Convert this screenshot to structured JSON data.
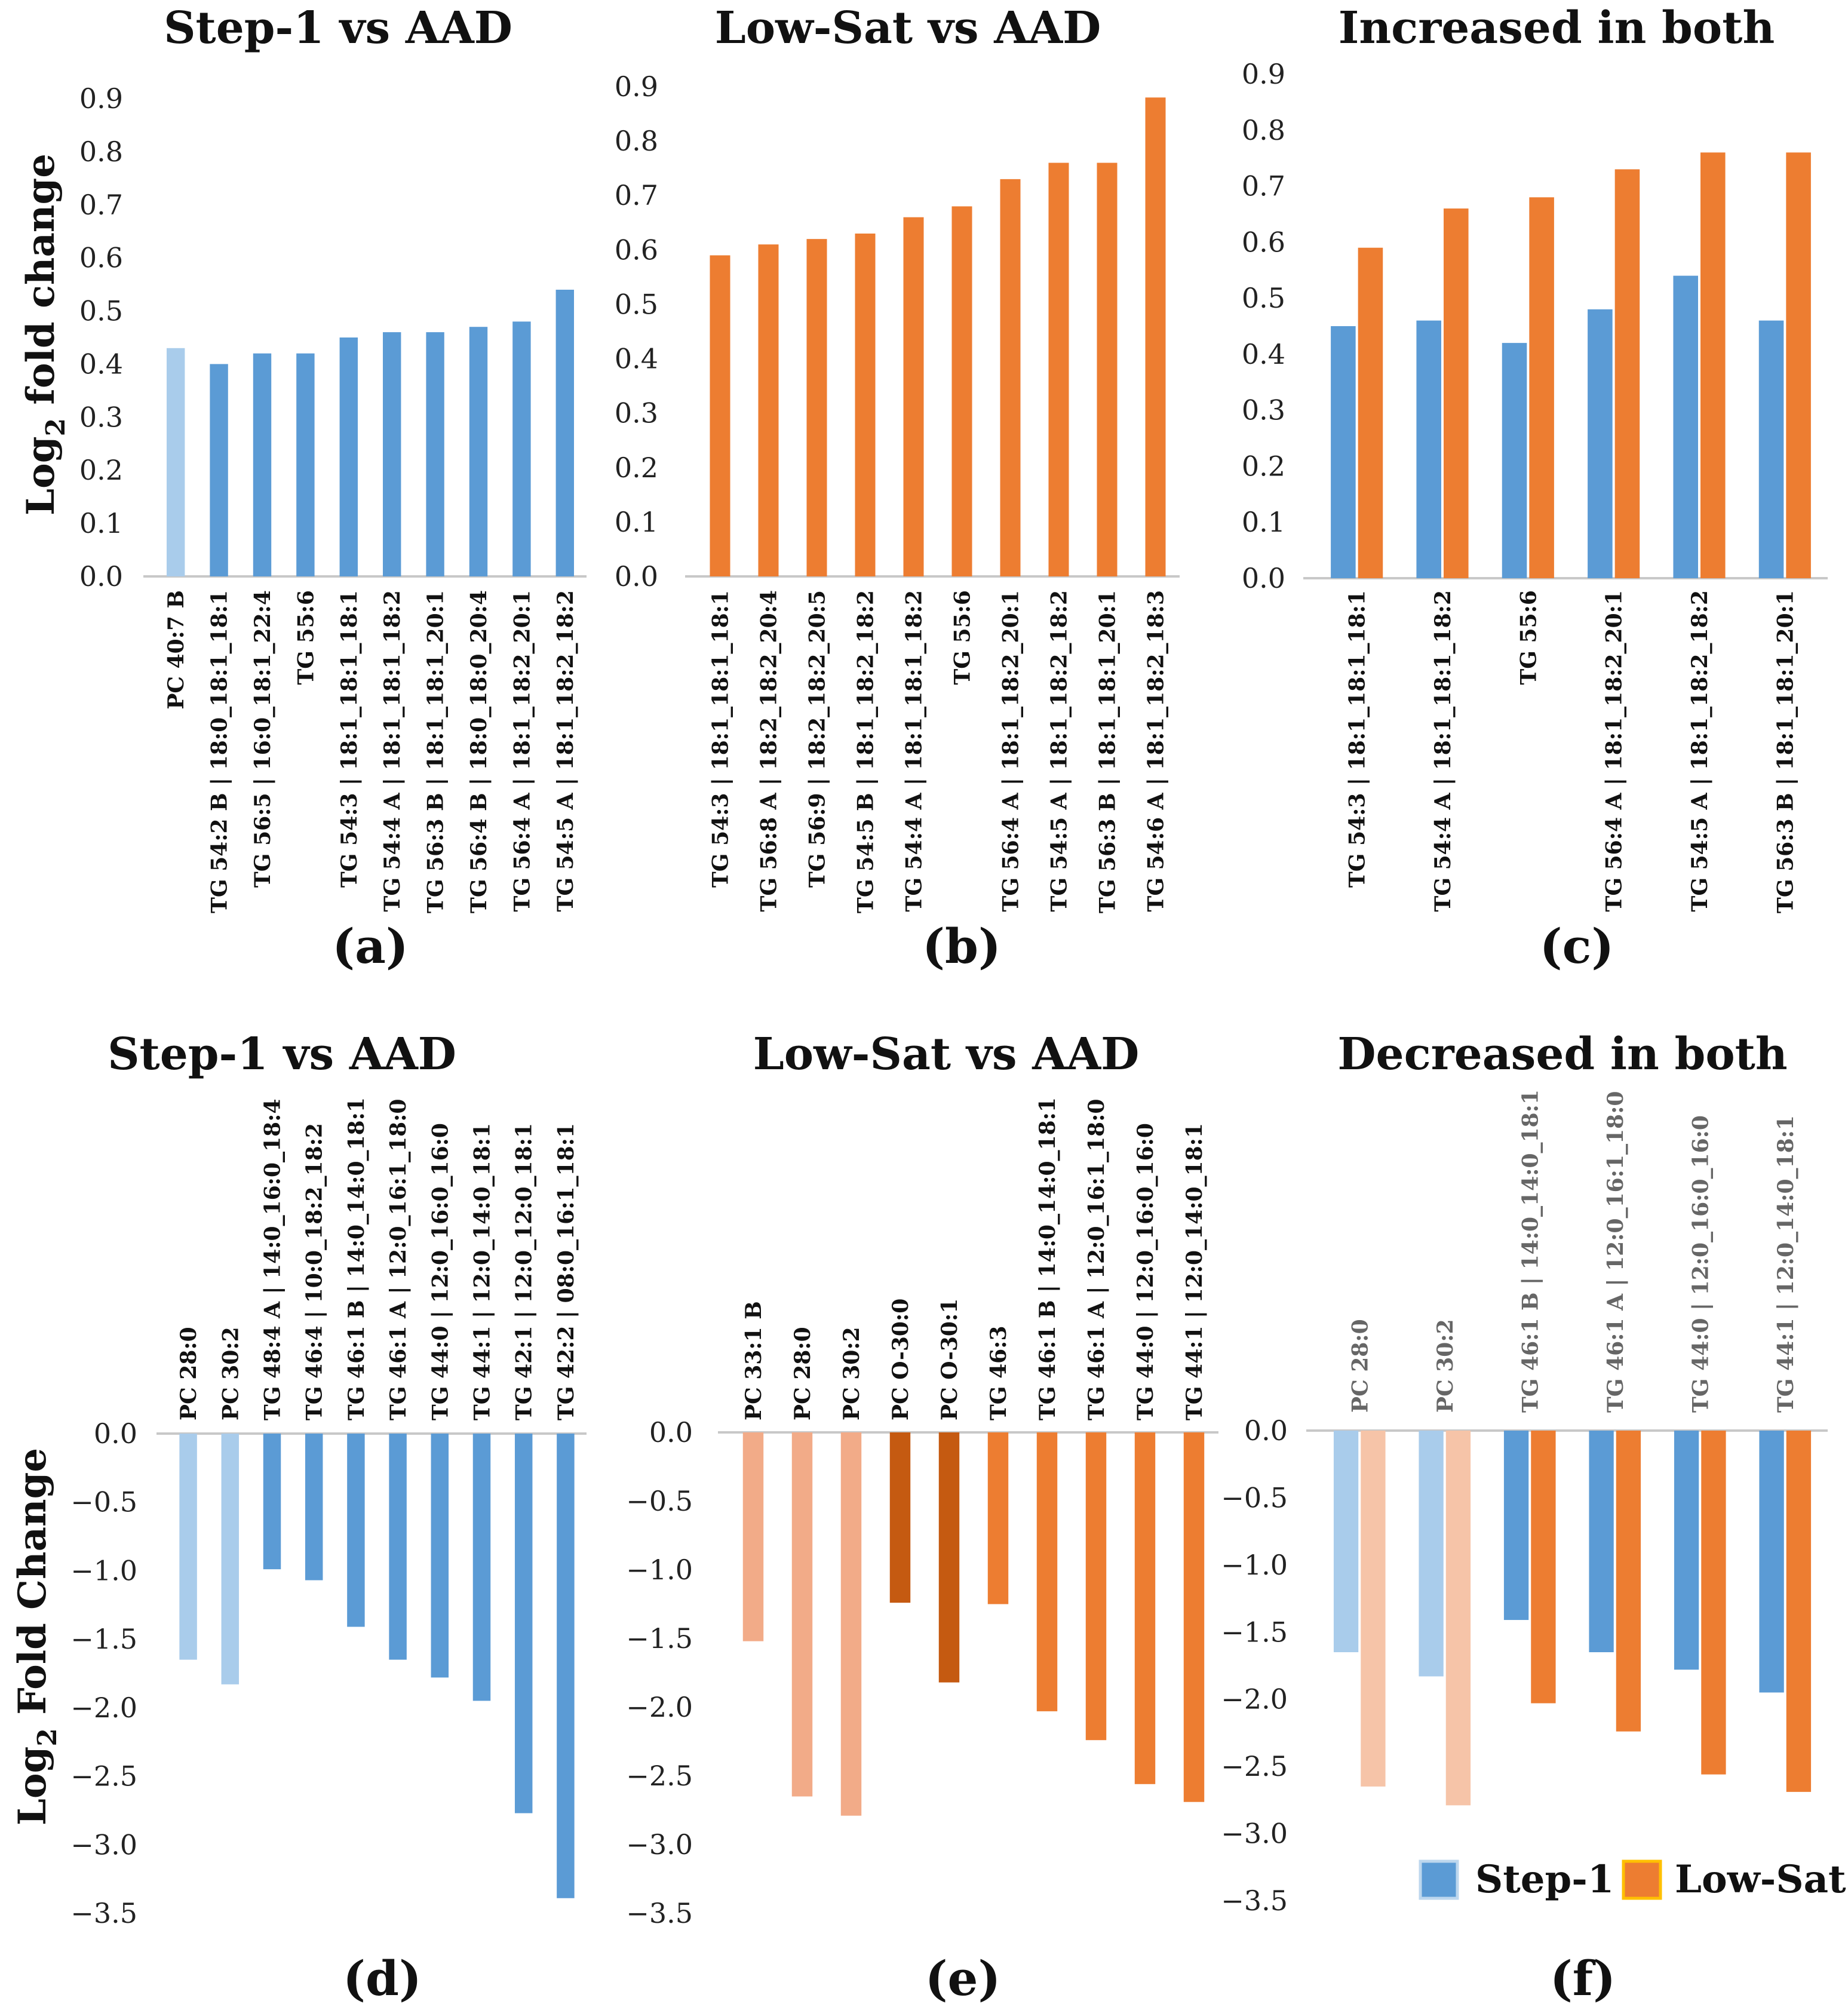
{
  "colors": {
    "step1": "#5b9bd5",
    "step1_light": "#a9cceb",
    "lowsat": "#ed7d31",
    "lowsat_light": "#f2ab88",
    "lowsat_lighter": "#f6c4a8",
    "lowsat_dark": "#c55a11",
    "axis": "#c8c8c8",
    "legend_lowsat_border": "#ffc000"
  },
  "shared_axis_labels": {
    "top_ylabel_main": "Log",
    "top_ylabel_sub": "2",
    "top_ylabel_rest": " fold change",
    "bottom_ylabel_main": "Log",
    "bottom_ylabel_sub": "2",
    "bottom_ylabel_rest": " Fold Change"
  },
  "legend": {
    "step1": "Step-1",
    "lowsat": "Low-Sat"
  },
  "chart_data": [
    {
      "id": "a",
      "panel_label": "(a)",
      "type": "bar",
      "title": "Step-1 vs AAD",
      "ylim": [
        0,
        0.9
      ],
      "yticks": [
        "0.0",
        "0.1",
        "0.2",
        "0.3",
        "0.4",
        "0.5",
        "0.6",
        "0.7",
        "0.8",
        "0.9"
      ],
      "categories": [
        "PC 40:7 B",
        "TG 54:2 B | 18:0_18:1_18:1",
        "TG 56:5 | 16:0_18:1_22:4",
        "TG 55:6",
        "TG 54:3 | 18:1_18:1_18:1",
        "TG 54:4 A | 18:1_18:1_18:2",
        "TG 56:3 B | 18:1_18:1_20:1",
        "TG 56:4 B | 18:0_18:0_20:4",
        "TG 56:4 A | 18:1_18:2_20:1",
        "TG 54:5 A | 18:1_18:2_18:2"
      ],
      "series": [
        {
          "name": "Step-1",
          "values": [
            0.43,
            0.4,
            0.42,
            0.42,
            0.45,
            0.46,
            0.46,
            0.47,
            0.48,
            0.54
          ],
          "colors": [
            "step1_light",
            "step1",
            "step1",
            "step1",
            "step1",
            "step1",
            "step1",
            "step1",
            "step1",
            "step1"
          ]
        }
      ]
    },
    {
      "id": "b",
      "panel_label": "(b)",
      "type": "bar",
      "title": "Low-Sat vs AAD",
      "ylim": [
        0,
        0.9
      ],
      "yticks": [
        "0.0",
        "0.1",
        "0.2",
        "0.3",
        "0.4",
        "0.5",
        "0.6",
        "0.7",
        "0.8",
        "0.9"
      ],
      "categories": [
        "TG 54:3 | 18:1_18:1_18:1",
        "TG 56:8 A | 18:2_18:2_20:4",
        "TG 56:9 | 18:2_18:2_20:5",
        "TG 54:5 B | 18:1_18:2_18:2",
        "TG 54:4 A | 18:1_18:1_18:2",
        "TG 55:6",
        "TG 56:4 A | 18:1_18:2_20:1",
        "TG 54:5 A | 18:1_18:2_18:2",
        "TG 56:3 B | 18:1_18:1_20:1",
        "TG 54:6 A | 18:1_18:2_18:3"
      ],
      "series": [
        {
          "name": "Low-Sat",
          "values": [
            0.59,
            0.61,
            0.62,
            0.63,
            0.66,
            0.68,
            0.73,
            0.76,
            0.76,
            0.88
          ],
          "colors": [
            "lowsat",
            "lowsat",
            "lowsat",
            "lowsat",
            "lowsat",
            "lowsat",
            "lowsat",
            "lowsat",
            "lowsat",
            "lowsat"
          ]
        }
      ]
    },
    {
      "id": "c",
      "panel_label": "(c)",
      "type": "bar",
      "title": "Increased in both",
      "ylim": [
        0,
        0.9
      ],
      "yticks": [
        "0.0",
        "0.1",
        "0.2",
        "0.3",
        "0.4",
        "0.5",
        "0.6",
        "0.7",
        "0.8",
        "0.9"
      ],
      "categories": [
        "TG 54:3 | 18:1_18:1_18:1",
        "TG 54:4 A | 18:1_18:1_18:2",
        "TG 55:6",
        "TG 56:4 A | 18:1_18:2_20:1",
        "TG 54:5 A | 18:1_18:2_18:2",
        "TG 56:3 B | 18:1_18:1_20:1"
      ],
      "series": [
        {
          "name": "Step-1",
          "values": [
            0.45,
            0.46,
            0.42,
            0.48,
            0.54,
            0.46
          ],
          "colors": [
            "step1",
            "step1",
            "step1",
            "step1",
            "step1",
            "step1"
          ]
        },
        {
          "name": "Low-Sat",
          "values": [
            0.59,
            0.66,
            0.68,
            0.73,
            0.76,
            0.76
          ],
          "colors": [
            "lowsat",
            "lowsat",
            "lowsat",
            "lowsat",
            "lowsat",
            "lowsat"
          ]
        }
      ]
    },
    {
      "id": "d",
      "panel_label": "(d)",
      "type": "bar",
      "title": "Step-1 vs AAD",
      "ylim": [
        -3.5,
        0
      ],
      "yticks": [
        "0.0",
        "−0.5",
        "−1.0",
        "−1.5",
        "−2.0",
        "−2.5",
        "−3.0",
        "−3.5"
      ],
      "categories": [
        "PC 28:0",
        "PC 30:2",
        "TG 48:4 A | 14:0_16:0_18:4",
        "TG 46:4 | 10:0_18:2_18:2",
        "TG 46:1 B | 14:0_14:0_18:1",
        "TG 46:1 A | 12:0_16:1_18:0",
        "TG 44:0 | 12:0_16:0_16:0",
        "TG 44:1 | 12:0_14:0_18:1",
        "TG 42:1 | 12:0_12:0_18:1",
        "TG 42:2 | 08:0_16:1_18:1"
      ],
      "series": [
        {
          "name": "Step-1",
          "values": [
            -1.65,
            -1.83,
            -0.99,
            -1.07,
            -1.41,
            -1.65,
            -1.78,
            -1.95,
            -2.77,
            -3.39
          ],
          "colors": [
            "step1_light",
            "step1_light",
            "step1",
            "step1",
            "step1",
            "step1",
            "step1",
            "step1",
            "step1",
            "step1"
          ]
        }
      ]
    },
    {
      "id": "e",
      "panel_label": "(e)",
      "type": "bar",
      "title": "Low-Sat vs AAD",
      "ylim": [
        -3.5,
        0
      ],
      "yticks": [
        "0.0",
        "−0.5",
        "−1.0",
        "−1.5",
        "−2.0",
        "−2.5",
        "−3.0",
        "−3.5"
      ],
      "categories": [
        "PC 33:1 B",
        "PC 28:0",
        "PC 30:2",
        "PC O-30:0",
        "PC O-30:1",
        "TG 46:3",
        "TG 46:1 B | 14:0_14:0_18:1",
        "TG 46:1 A | 12:0_16:1_18:0",
        "TG 44:0 | 12:0_16:0_16:0",
        "TG 44:1 | 12:0_14:0_18:1"
      ],
      "series": [
        {
          "name": "Low-Sat",
          "values": [
            -1.52,
            -2.65,
            -2.79,
            -1.24,
            -1.82,
            -1.25,
            -2.03,
            -2.24,
            -2.56,
            -2.69
          ],
          "colors": [
            "lowsat_light",
            "lowsat_light",
            "lowsat_light",
            "lowsat_dark",
            "lowsat_dark",
            "lowsat",
            "lowsat",
            "lowsat",
            "lowsat",
            "lowsat"
          ]
        }
      ]
    },
    {
      "id": "f",
      "panel_label": "(f)",
      "type": "bar",
      "title": "Decreased in both",
      "ylim": [
        -3.5,
        0
      ],
      "yticks": [
        "0.0",
        "−0.5",
        "−1.0",
        "−1.5",
        "−2.0",
        "−2.5",
        "−3.0",
        "−3.5"
      ],
      "categories": [
        "PC 28:0",
        "PC 30:2",
        "TG 46:1 B | 14:0_14:0_18:1",
        "TG 46:1 A | 12:0_16:1_18:0",
        "TG 44:0 | 12:0_16:0_16:0",
        "TG 44:1 | 12:0_14:0_18:1"
      ],
      "series": [
        {
          "name": "Step-1",
          "values": [
            -1.65,
            -1.83,
            -1.41,
            -1.65,
            -1.78,
            -1.95
          ],
          "colors": [
            "step1_light",
            "step1_light",
            "step1",
            "step1",
            "step1",
            "step1"
          ]
        },
        {
          "name": "Low-Sat",
          "values": [
            -2.65,
            -2.79,
            -2.03,
            -2.24,
            -2.56,
            -2.69
          ],
          "colors": [
            "lowsat_lighter",
            "lowsat_lighter",
            "lowsat",
            "lowsat",
            "lowsat",
            "lowsat"
          ]
        }
      ]
    }
  ]
}
